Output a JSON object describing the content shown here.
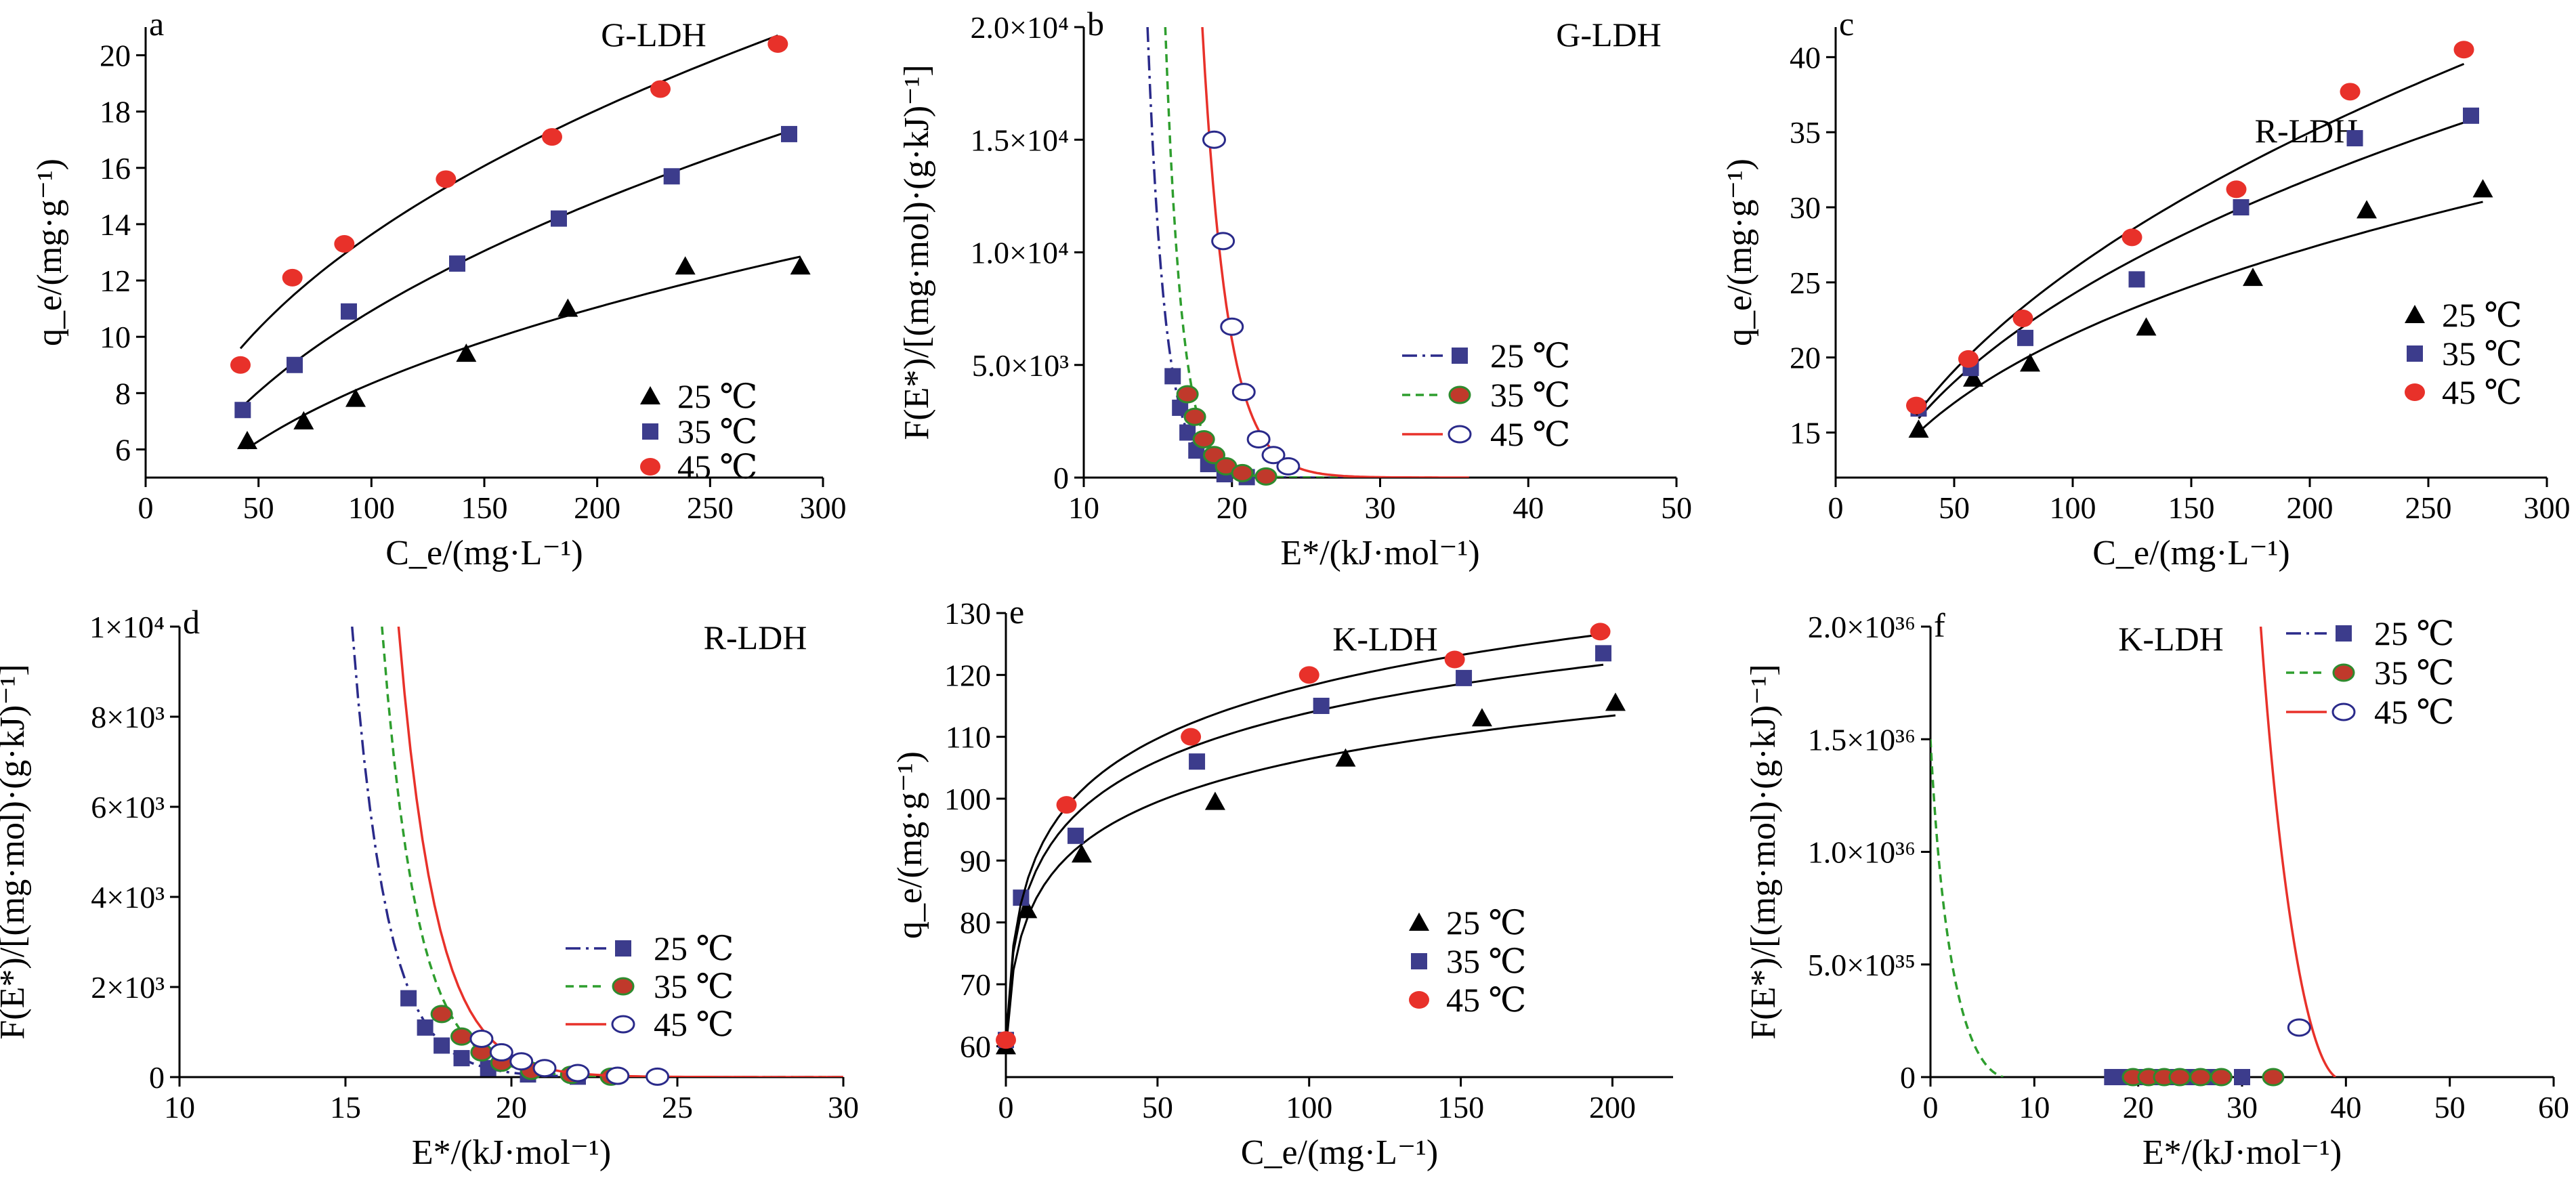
{
  "colors": {
    "c25": "#000000",
    "c35": "#3c3c8c",
    "c45": "#e8312a",
    "curve": "#000000",
    "d25": "#2a2a8a",
    "d35": "#2e9e2e",
    "d45": "#e8312a",
    "marker35": "#c0392b",
    "marker35edge": "#2e8b2e",
    "marker45edge": "#2a2a8a"
  },
  "chart_data": [
    {
      "id": "a",
      "type": "scatter",
      "letter": "a",
      "title": "G-LDH",
      "ylabel": "q_e/(mg·g⁻¹)",
      "xlabel": "C_e/(mg·L⁻¹)",
      "xlim": [
        0,
        300
      ],
      "ylim": [
        5,
        21
      ],
      "xticks": [
        0,
        50,
        100,
        150,
        200,
        250,
        300
      ],
      "yticks": [
        6,
        8,
        10,
        12,
        14,
        16,
        18,
        20
      ],
      "legend_position": "middle-right",
      "series": [
        {
          "name": "25 ℃",
          "marker": "triangle",
          "points": [
            [
              45,
              6.3
            ],
            [
              70,
              7.0
            ],
            [
              93,
              7.8
            ],
            [
              142,
              9.4
            ],
            [
              187,
              11.0
            ],
            [
              239,
              12.5
            ],
            [
              290,
              12.5
            ]
          ]
        },
        {
          "name": "35 ℃",
          "marker": "square",
          "points": [
            [
              43,
              7.4
            ],
            [
              66,
              9.0
            ],
            [
              90,
              10.9
            ],
            [
              138,
              12.6
            ],
            [
              183,
              14.2
            ],
            [
              233,
              15.7
            ],
            [
              285,
              17.2
            ]
          ]
        },
        {
          "name": "45 ℃",
          "marker": "circle",
          "points": [
            [
              42,
              9.0
            ],
            [
              65,
              12.1
            ],
            [
              88,
              13.3
            ],
            [
              133,
              15.6
            ],
            [
              180,
              17.1
            ],
            [
              228,
              18.8
            ],
            [
              280,
              20.4
            ]
          ]
        }
      ]
    },
    {
      "id": "b",
      "type": "line",
      "letter": "b",
      "title": "G-LDH",
      "ylabel": "F(E*)/[(mg·mol)·(g·kJ)⁻¹]",
      "xlabel": "E*/(kJ·mol⁻¹)",
      "xlim": [
        10,
        50
      ],
      "ylim": [
        0,
        20000
      ],
      "xticks": [
        10,
        20,
        30,
        40,
        50
      ],
      "ytick_values": [
        0,
        5000,
        10000,
        15000,
        20000
      ],
      "ytick_labels": [
        "0",
        "5.0×10³",
        "1.0×10⁴",
        "1.5×10⁴",
        "2.0×10⁴"
      ],
      "legend_position": "middle-right",
      "series": [
        {
          "name": "25 ℃",
          "style": "dashdot",
          "marker": "square",
          "points": [
            [
              16.0,
              4500
            ],
            [
              16.5,
              3100
            ],
            [
              17.0,
              2000
            ],
            [
              17.6,
              1200
            ],
            [
              18.4,
              600
            ],
            [
              19.5,
              150
            ],
            [
              21.0,
              20
            ]
          ]
        },
        {
          "name": "35 ℃",
          "style": "dashed",
          "marker": "circle-red",
          "points": [
            [
              17.0,
              3700
            ],
            [
              17.5,
              2700
            ],
            [
              18.1,
              1700
            ],
            [
              18.8,
              1000
            ],
            [
              19.6,
              500
            ],
            [
              20.7,
              200
            ],
            [
              22.3,
              50
            ]
          ]
        },
        {
          "name": "45 ℃",
          "style": "solid",
          "marker": "circle-open",
          "points": [
            [
              18.8,
              15000
            ],
            [
              19.4,
              10500
            ],
            [
              20.0,
              6700
            ],
            [
              20.8,
              3800
            ],
            [
              21.8,
              1700
            ],
            [
              22.8,
              1000
            ],
            [
              23.8,
              500
            ]
          ]
        }
      ]
    },
    {
      "id": "c",
      "type": "scatter",
      "letter": "c",
      "title": "R-LDH",
      "ylabel": "q_e/(mg·g⁻¹)",
      "xlabel": "C_e/(mg·L⁻¹)",
      "xlim": [
        0,
        300
      ],
      "ylim": [
        12,
        42
      ],
      "xticks": [
        0,
        50,
        100,
        150,
        200,
        250,
        300
      ],
      "yticks": [
        15,
        20,
        25,
        30,
        35,
        40
      ],
      "legend_position": "middle-right",
      "series": [
        {
          "name": "25 ℃",
          "marker": "triangle",
          "points": [
            [
              35,
              15.2
            ],
            [
              58,
              18.6
            ],
            [
              82,
              19.6
            ],
            [
              131,
              22.0
            ],
            [
              176,
              25.3
            ],
            [
              224,
              29.8
            ],
            [
              273,
              31.2
            ]
          ]
        },
        {
          "name": "35 ℃",
          "marker": "square",
          "points": [
            [
              35,
              16.6
            ],
            [
              57,
              19.3
            ],
            [
              80,
              21.3
            ],
            [
              127,
              25.2
            ],
            [
              171,
              30.0
            ],
            [
              219,
              34.6
            ],
            [
              268,
              36.1
            ]
          ]
        },
        {
          "name": "45 ℃",
          "marker": "circle",
          "points": [
            [
              34,
              16.8
            ],
            [
              56,
              19.9
            ],
            [
              79,
              22.6
            ],
            [
              125,
              28.0
            ],
            [
              169,
              31.2
            ],
            [
              217,
              37.7
            ],
            [
              265,
              40.5
            ]
          ]
        }
      ]
    },
    {
      "id": "d",
      "type": "line",
      "letter": "d",
      "title": "R-LDH",
      "ylabel": "F(E*)/[(mg·mol)·(g·kJ)⁻¹]",
      "xlabel": "E*/(kJ·mol⁻¹)",
      "xlim": [
        10,
        30
      ],
      "ylim": [
        0,
        10000
      ],
      "xticks": [
        10,
        15,
        20,
        25,
        30
      ],
      "ytick_values": [
        0,
        2000,
        4000,
        6000,
        8000,
        10000
      ],
      "ytick_labels": [
        "0",
        "2×10³",
        "4×10³",
        "6×10³",
        "8×10³",
        "1×10⁴"
      ],
      "legend_position": "bottom-right",
      "series": [
        {
          "name": "25 ℃",
          "style": "dashdot",
          "marker": "square",
          "points": [
            [
              16.9,
              1750
            ],
            [
              17.4,
              1100
            ],
            [
              17.9,
              700
            ],
            [
              18.5,
              420
            ],
            [
              19.3,
              200
            ],
            [
              20.5,
              60
            ],
            [
              22.0,
              10
            ]
          ]
        },
        {
          "name": "35 ℃",
          "style": "dashed",
          "marker": "circle-red",
          "points": [
            [
              17.9,
              1400
            ],
            [
              18.5,
              900
            ],
            [
              19.1,
              550
            ],
            [
              19.7,
              320
            ],
            [
              20.6,
              140
            ],
            [
              21.8,
              50
            ],
            [
              23.0,
              10
            ]
          ]
        },
        {
          "name": "45 ℃",
          "style": "solid",
          "marker": "circle-open",
          "points": [
            [
              19.1,
              850
            ],
            [
              19.7,
              550
            ],
            [
              20.3,
              350
            ],
            [
              21.0,
              200
            ],
            [
              22.0,
              90
            ],
            [
              23.2,
              30
            ],
            [
              24.4,
              10
            ]
          ]
        }
      ]
    },
    {
      "id": "e",
      "type": "scatter",
      "letter": "e",
      "title": "K-LDH",
      "ylabel": "q_e/(mg·g⁻¹)",
      "xlabel": "C_e/(mg·L⁻¹)",
      "xlim": [
        0,
        220
      ],
      "ylim": [
        55,
        130
      ],
      "xticks": [
        0,
        50,
        100,
        150,
        200
      ],
      "yticks": [
        60,
        70,
        80,
        90,
        100,
        110,
        120,
        130
      ],
      "legend_position": "bottom-right",
      "series": [
        {
          "name": "25 ℃",
          "marker": "triangle",
          "points": [
            [
              0,
              60.0
            ],
            [
              7,
              82.0
            ],
            [
              25,
              91.0
            ],
            [
              69,
              99.5
            ],
            [
              112,
              106.5
            ],
            [
              157,
              113.0
            ],
            [
              201,
              115.5
            ]
          ]
        },
        {
          "name": "35 ℃",
          "marker": "square",
          "points": [
            [
              0,
              61.0
            ],
            [
              5,
              84.0
            ],
            [
              23,
              94.0
            ],
            [
              63,
              106.0
            ],
            [
              104,
              115.0
            ],
            [
              151,
              119.5
            ],
            [
              197,
              123.5
            ]
          ]
        },
        {
          "name": "45 ℃",
          "marker": "circle",
          "points": [
            [
              0,
              61.0
            ],
            [
              20,
              99.0
            ],
            [
              61,
              110.0
            ],
            [
              100,
              120.0
            ],
            [
              148,
              122.5
            ],
            [
              196,
              127.0
            ]
          ]
        }
      ]
    },
    {
      "id": "f",
      "type": "line",
      "letter": "f",
      "title": "K-LDH",
      "ylabel": "F(E*)/[(mg·mol)·(g·kJ)⁻¹]",
      "xlabel": "E*/(kJ·mol⁻¹)",
      "xlim": [
        0,
        60
      ],
      "ylim": [
        0,
        2e+36
      ],
      "xticks": [
        0,
        10,
        20,
        30,
        40,
        50,
        60
      ],
      "ytick_values": [
        0,
        5e+35,
        1e+36,
        1.5e+36,
        2e+36
      ],
      "ytick_labels": [
        "0",
        "5.0×10³⁵",
        "1.0×10³⁶",
        "1.5×10³⁶",
        "2.0×10³⁶"
      ],
      "legend_position": "top-right",
      "series": [
        {
          "name": "25 ℃",
          "style": "dashdot",
          "marker": "square",
          "points": [
            [
              17.5,
              0
            ],
            [
              19,
              0
            ],
            [
              20.5,
              0
            ],
            [
              22,
              0
            ],
            [
              23.5,
              0
            ],
            [
              25,
              0
            ],
            [
              27,
              0
            ],
            [
              30,
              0
            ]
          ]
        },
        {
          "name": "35 ℃",
          "style": "dashed",
          "marker": "circle-red",
          "points": [
            [
              19.5,
              0
            ],
            [
              21,
              0
            ],
            [
              22.5,
              0
            ],
            [
              24,
              0
            ],
            [
              26,
              0
            ],
            [
              28,
              0
            ],
            [
              33,
              0
            ]
          ]
        },
        {
          "name": "45 ℃",
          "style": "solid",
          "marker": "circle-open",
          "points": [
            [
              35.5,
              2.2e+35
            ]
          ]
        }
      ]
    }
  ]
}
